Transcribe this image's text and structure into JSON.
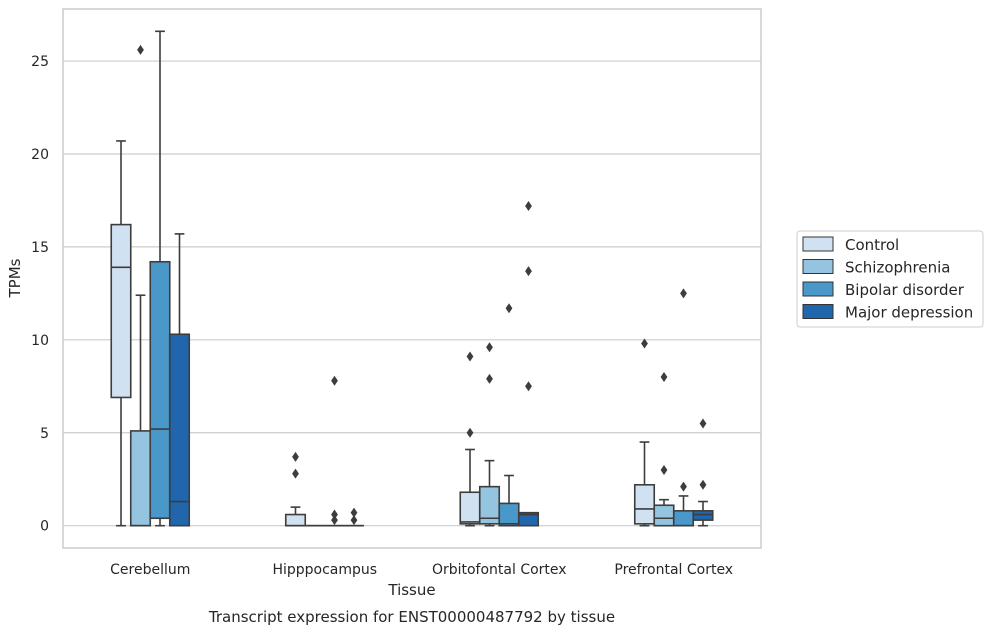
{
  "chart_data": {
    "type": "boxplot",
    "title": "Transcript expression for ENST00000487792 by tissue",
    "xlabel": "Tissue",
    "ylabel": "TPMs",
    "ylim": [
      -1.2,
      27.8
    ],
    "yticks": [
      0,
      5,
      10,
      15,
      20,
      25
    ],
    "grid": true,
    "legend_position": "right",
    "categories": [
      "Cerebellum",
      "Hipppocampus",
      "Orbitofontal Cortex",
      "Prefrontal Cortex"
    ],
    "series": [
      {
        "name": "Control",
        "color": "#d0e1f2",
        "boxes": [
          {
            "whislo": 0,
            "q1": 6.9,
            "med": 13.9,
            "q3": 16.2,
            "whishi": 20.7,
            "fliers": []
          },
          {
            "whislo": 0,
            "q1": 0,
            "med": 0,
            "q3": 0.6,
            "whishi": 1.0,
            "fliers": [
              2.8,
              3.7
            ]
          },
          {
            "whislo": 0,
            "q1": 0.1,
            "med": 0.2,
            "q3": 1.8,
            "whishi": 4.1,
            "fliers": [
              5.0,
              9.1
            ]
          },
          {
            "whislo": 0,
            "q1": 0.1,
            "med": 0.9,
            "q3": 2.2,
            "whishi": 4.5,
            "fliers": [
              9.8
            ]
          }
        ]
      },
      {
        "name": "Schizophrenia",
        "color": "#94c4df",
        "boxes": [
          {
            "whislo": 0,
            "q1": 0,
            "med": 0,
            "q3": 5.1,
            "whishi": 12.4,
            "fliers": [
              25.6
            ]
          },
          {
            "whislo": 0,
            "q1": 0,
            "med": 0,
            "q3": 0,
            "whishi": 0,
            "fliers": []
          },
          {
            "whislo": 0,
            "q1": 0.1,
            "med": 0.4,
            "q3": 2.1,
            "whishi": 3.5,
            "fliers": [
              7.9,
              9.6
            ]
          },
          {
            "whislo": 0,
            "q1": 0,
            "med": 0.4,
            "q3": 1.1,
            "whishi": 1.4,
            "fliers": [
              3.0,
              8.0
            ]
          }
        ]
      },
      {
        "name": "Bipolar disorder",
        "color": "#4a98c9",
        "boxes": [
          {
            "whislo": 0,
            "q1": 0.4,
            "med": 5.2,
            "q3": 14.2,
            "whishi": 26.6,
            "fliers": []
          },
          {
            "whislo": 0,
            "q1": 0,
            "med": 0,
            "q3": 0,
            "whishi": 0,
            "fliers": [
              0.3,
              0.6,
              7.8
            ]
          },
          {
            "whislo": 0,
            "q1": 0,
            "med": 0.1,
            "q3": 1.2,
            "whishi": 2.7,
            "fliers": [
              11.7
            ]
          },
          {
            "whislo": 0,
            "q1": 0,
            "med": 0,
            "q3": 0.8,
            "whishi": 1.6,
            "fliers": [
              2.1,
              12.5
            ]
          }
        ]
      },
      {
        "name": "Major depression",
        "color": "#2166ac",
        "boxes": [
          {
            "whislo": 0,
            "q1": 0,
            "med": 1.3,
            "q3": 10.3,
            "whishi": 15.7,
            "fliers": []
          },
          {
            "whislo": 0,
            "q1": 0,
            "med": 0,
            "q3": 0,
            "whishi": 0,
            "fliers": [
              0.3,
              0.7
            ]
          },
          {
            "whislo": 0,
            "q1": 0,
            "med": 0.6,
            "q3": 0.7,
            "whishi": 0.7,
            "fliers": [
              7.5,
              13.7,
              17.2
            ]
          },
          {
            "whislo": 0,
            "q1": 0.3,
            "med": 0.6,
            "q3": 0.8,
            "whishi": 1.3,
            "fliers": [
              2.2,
              5.5
            ]
          }
        ]
      }
    ]
  }
}
